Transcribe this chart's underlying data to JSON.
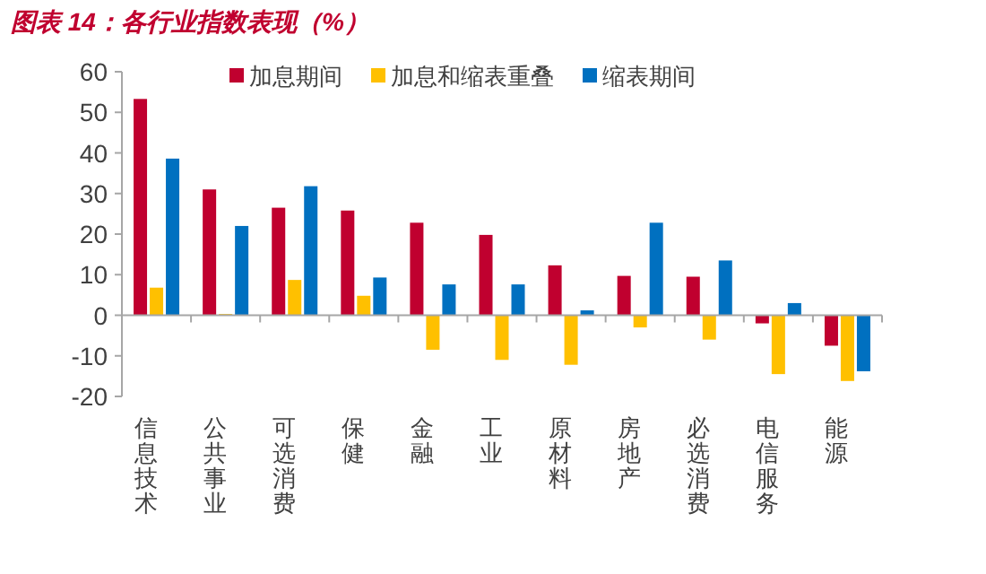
{
  "chart_data": {
    "type": "bar",
    "title": "图表 14：各行业指数表现（%）",
    "categories": [
      "信息技术",
      "公共事业",
      "可选消费",
      "保健",
      "金融",
      "工业",
      "原材料",
      "房地产",
      "必选消费",
      "电信服务",
      "能源"
    ],
    "series": [
      {
        "name": "加息期间",
        "color": "#c0002f",
        "values": [
          53.3,
          31,
          26.5,
          25.8,
          22.8,
          19.8,
          12.3,
          9.7,
          9.5,
          -2,
          -7.5
        ]
      },
      {
        "name": "加息和缩表重叠",
        "color": "#ffc000",
        "values": [
          6.8,
          0.3,
          8.7,
          4.8,
          -8.5,
          -11,
          -12.2,
          -3,
          -6,
          -14.5,
          -16.2
        ]
      },
      {
        "name": "缩表期间",
        "color": "#0070c0",
        "values": [
          38.6,
          22,
          31.8,
          9.3,
          7.6,
          7.6,
          1.2,
          22.8,
          13.5,
          3,
          -13.8
        ]
      }
    ],
    "ylim": [
      -20,
      60
    ],
    "yticks": [
      -20,
      -10,
      0,
      10,
      20,
      30,
      40,
      50,
      60
    ],
    "legend": "top"
  }
}
